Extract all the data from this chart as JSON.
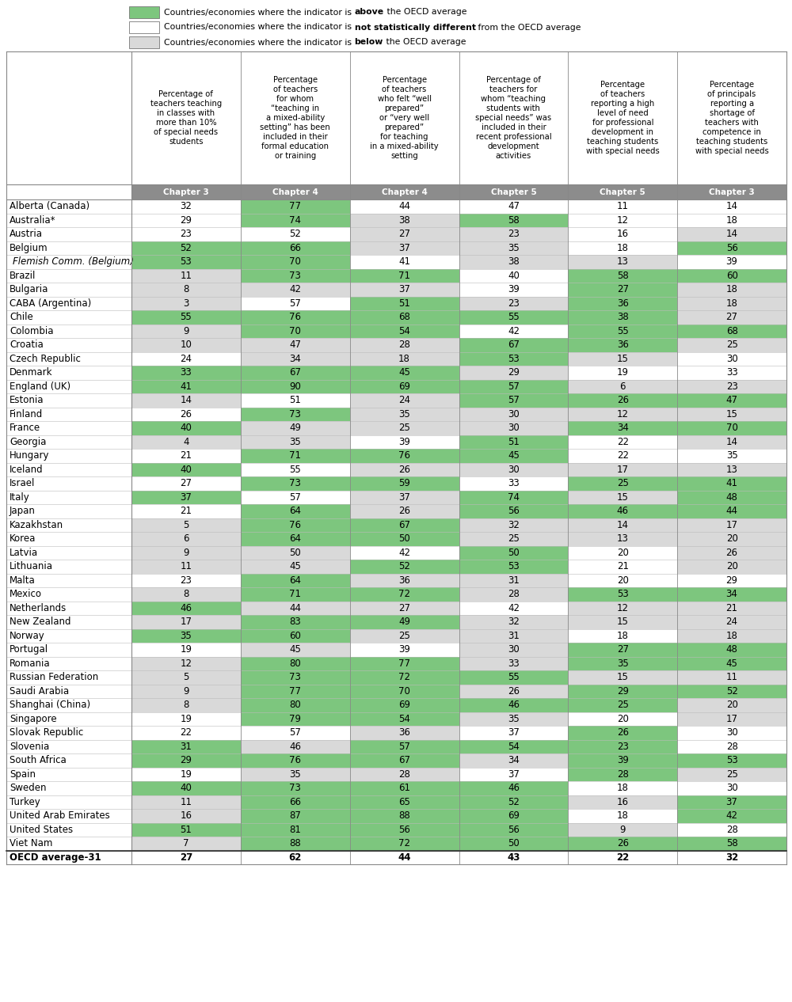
{
  "col_headers": [
    "Percentage of\nteachers teaching\nin classes with\nmore than 10%\nof special needs\nstudents",
    "Percentage\nof teachers\nfor whom\n“teaching in\na mixed-ability\nsetting” has been\nincluded in their\nformal education\nor training",
    "Percentage\nof teachers\nwho felt “well\nprepared”\nor “very well\nprepared”\nfor teaching\nin a mixed-ability\nsetting",
    "Percentage of\nteachers for\nwhom “teaching\nstudents with\nspecial needs” was\nincluded in their\nrecent professional\ndevelopment\nactivities",
    "Percentage\nof teachers\nreporting a high\nlevel of need\nfor professional\ndevelopment in\nteaching students\nwith special needs",
    "Percentage\nof principals\nreporting a\nshortage of\nteachers with\ncompetence in\nteaching students\nwith special needs"
  ],
  "chapter_headers": [
    "Chapter 3",
    "Chapter 4",
    "Chapter 4",
    "Chapter 5",
    "Chapter 5",
    "Chapter 3"
  ],
  "rows": [
    {
      "country": "Alberta (Canada)",
      "values": [
        32,
        77,
        44,
        47,
        11,
        14
      ],
      "colors": [
        "#ffffff",
        "#7dc67e",
        "#ffffff",
        "#ffffff",
        "#ffffff",
        "#ffffff"
      ],
      "italic": false
    },
    {
      "country": "Australia*",
      "values": [
        29,
        74,
        38,
        58,
        12,
        18
      ],
      "colors": [
        "#ffffff",
        "#7dc67e",
        "#d9d9d9",
        "#7dc67e",
        "#ffffff",
        "#ffffff"
      ],
      "italic": false
    },
    {
      "country": "Austria",
      "values": [
        23,
        52,
        27,
        23,
        16,
        14
      ],
      "colors": [
        "#ffffff",
        "#ffffff",
        "#d9d9d9",
        "#d9d9d9",
        "#ffffff",
        "#d9d9d9"
      ],
      "italic": false
    },
    {
      "country": "Belgium",
      "values": [
        52,
        66,
        37,
        35,
        18,
        56
      ],
      "colors": [
        "#7dc67e",
        "#7dc67e",
        "#d9d9d9",
        "#d9d9d9",
        "#ffffff",
        "#7dc67e"
      ],
      "italic": false
    },
    {
      "country": "Flemish Comm. (Belgium)",
      "values": [
        53,
        70,
        41,
        38,
        13,
        39
      ],
      "colors": [
        "#7dc67e",
        "#7dc67e",
        "#ffffff",
        "#d9d9d9",
        "#d9d9d9",
        "#ffffff"
      ],
      "italic": true
    },
    {
      "country": "Brazil",
      "values": [
        11,
        73,
        71,
        40,
        58,
        60
      ],
      "colors": [
        "#d9d9d9",
        "#7dc67e",
        "#7dc67e",
        "#ffffff",
        "#7dc67e",
        "#7dc67e"
      ],
      "italic": false
    },
    {
      "country": "Bulgaria",
      "values": [
        8,
        42,
        37,
        39,
        27,
        18
      ],
      "colors": [
        "#d9d9d9",
        "#d9d9d9",
        "#d9d9d9",
        "#ffffff",
        "#7dc67e",
        "#d9d9d9"
      ],
      "italic": false
    },
    {
      "country": "CABA (Argentina)",
      "values": [
        3,
        57,
        51,
        23,
        36,
        18
      ],
      "colors": [
        "#d9d9d9",
        "#ffffff",
        "#7dc67e",
        "#d9d9d9",
        "#7dc67e",
        "#d9d9d9"
      ],
      "italic": false
    },
    {
      "country": "Chile",
      "values": [
        55,
        76,
        68,
        55,
        38,
        27
      ],
      "colors": [
        "#7dc67e",
        "#7dc67e",
        "#7dc67e",
        "#7dc67e",
        "#7dc67e",
        "#d9d9d9"
      ],
      "italic": false
    },
    {
      "country": "Colombia",
      "values": [
        9,
        70,
        54,
        42,
        55,
        68
      ],
      "colors": [
        "#d9d9d9",
        "#7dc67e",
        "#7dc67e",
        "#ffffff",
        "#7dc67e",
        "#7dc67e"
      ],
      "italic": false
    },
    {
      "country": "Croatia",
      "values": [
        10,
        47,
        28,
        67,
        36,
        25
      ],
      "colors": [
        "#d9d9d9",
        "#d9d9d9",
        "#d9d9d9",
        "#7dc67e",
        "#7dc67e",
        "#d9d9d9"
      ],
      "italic": false
    },
    {
      "country": "Czech Republic",
      "values": [
        24,
        34,
        18,
        53,
        15,
        30
      ],
      "colors": [
        "#ffffff",
        "#d9d9d9",
        "#d9d9d9",
        "#7dc67e",
        "#d9d9d9",
        "#ffffff"
      ],
      "italic": false
    },
    {
      "country": "Denmark",
      "values": [
        33,
        67,
        45,
        29,
        19,
        33
      ],
      "colors": [
        "#7dc67e",
        "#7dc67e",
        "#7dc67e",
        "#d9d9d9",
        "#ffffff",
        "#ffffff"
      ],
      "italic": false
    },
    {
      "country": "England (UK)",
      "values": [
        41,
        90,
        69,
        57,
        6,
        23
      ],
      "colors": [
        "#7dc67e",
        "#7dc67e",
        "#7dc67e",
        "#7dc67e",
        "#d9d9d9",
        "#d9d9d9"
      ],
      "italic": false
    },
    {
      "country": "Estonia",
      "values": [
        14,
        51,
        24,
        57,
        26,
        47
      ],
      "colors": [
        "#d9d9d9",
        "#ffffff",
        "#d9d9d9",
        "#7dc67e",
        "#7dc67e",
        "#7dc67e"
      ],
      "italic": false
    },
    {
      "country": "Finland",
      "values": [
        26,
        73,
        35,
        30,
        12,
        15
      ],
      "colors": [
        "#ffffff",
        "#7dc67e",
        "#d9d9d9",
        "#d9d9d9",
        "#d9d9d9",
        "#d9d9d9"
      ],
      "italic": false
    },
    {
      "country": "France",
      "values": [
        40,
        49,
        25,
        30,
        34,
        70
      ],
      "colors": [
        "#7dc67e",
        "#d9d9d9",
        "#d9d9d9",
        "#d9d9d9",
        "#7dc67e",
        "#7dc67e"
      ],
      "italic": false
    },
    {
      "country": "Georgia",
      "values": [
        4,
        35,
        39,
        51,
        22,
        14
      ],
      "colors": [
        "#d9d9d9",
        "#d9d9d9",
        "#ffffff",
        "#7dc67e",
        "#ffffff",
        "#d9d9d9"
      ],
      "italic": false
    },
    {
      "country": "Hungary",
      "values": [
        21,
        71,
        76,
        45,
        22,
        35
      ],
      "colors": [
        "#ffffff",
        "#7dc67e",
        "#7dc67e",
        "#7dc67e",
        "#ffffff",
        "#ffffff"
      ],
      "italic": false
    },
    {
      "country": "Iceland",
      "values": [
        40,
        55,
        26,
        30,
        17,
        13
      ],
      "colors": [
        "#7dc67e",
        "#ffffff",
        "#d9d9d9",
        "#d9d9d9",
        "#d9d9d9",
        "#d9d9d9"
      ],
      "italic": false
    },
    {
      "country": "Israel",
      "values": [
        27,
        73,
        59,
        33,
        25,
        41
      ],
      "colors": [
        "#ffffff",
        "#7dc67e",
        "#7dc67e",
        "#ffffff",
        "#7dc67e",
        "#7dc67e"
      ],
      "italic": false
    },
    {
      "country": "Italy",
      "values": [
        37,
        57,
        37,
        74,
        15,
        48
      ],
      "colors": [
        "#7dc67e",
        "#ffffff",
        "#d9d9d9",
        "#7dc67e",
        "#d9d9d9",
        "#7dc67e"
      ],
      "italic": false
    },
    {
      "country": "Japan",
      "values": [
        21,
        64,
        26,
        56,
        46,
        44
      ],
      "colors": [
        "#ffffff",
        "#7dc67e",
        "#d9d9d9",
        "#7dc67e",
        "#7dc67e",
        "#7dc67e"
      ],
      "italic": false
    },
    {
      "country": "Kazakhstan",
      "values": [
        5,
        76,
        67,
        32,
        14,
        17
      ],
      "colors": [
        "#d9d9d9",
        "#7dc67e",
        "#7dc67e",
        "#d9d9d9",
        "#d9d9d9",
        "#d9d9d9"
      ],
      "italic": false
    },
    {
      "country": "Korea",
      "values": [
        6,
        64,
        50,
        25,
        13,
        20
      ],
      "colors": [
        "#d9d9d9",
        "#7dc67e",
        "#7dc67e",
        "#d9d9d9",
        "#d9d9d9",
        "#d9d9d9"
      ],
      "italic": false
    },
    {
      "country": "Latvia",
      "values": [
        9,
        50,
        42,
        50,
        20,
        26
      ],
      "colors": [
        "#d9d9d9",
        "#d9d9d9",
        "#ffffff",
        "#7dc67e",
        "#ffffff",
        "#d9d9d9"
      ],
      "italic": false
    },
    {
      "country": "Lithuania",
      "values": [
        11,
        45,
        52,
        53,
        21,
        20
      ],
      "colors": [
        "#d9d9d9",
        "#d9d9d9",
        "#7dc67e",
        "#7dc67e",
        "#ffffff",
        "#d9d9d9"
      ],
      "italic": false
    },
    {
      "country": "Malta",
      "values": [
        23,
        64,
        36,
        31,
        20,
        29
      ],
      "colors": [
        "#ffffff",
        "#7dc67e",
        "#d9d9d9",
        "#d9d9d9",
        "#ffffff",
        "#ffffff"
      ],
      "italic": false
    },
    {
      "country": "Mexico",
      "values": [
        8,
        71,
        72,
        28,
        53,
        34
      ],
      "colors": [
        "#d9d9d9",
        "#7dc67e",
        "#7dc67e",
        "#d9d9d9",
        "#7dc67e",
        "#7dc67e"
      ],
      "italic": false
    },
    {
      "country": "Netherlands",
      "values": [
        46,
        44,
        27,
        42,
        12,
        21
      ],
      "colors": [
        "#7dc67e",
        "#d9d9d9",
        "#d9d9d9",
        "#ffffff",
        "#d9d9d9",
        "#d9d9d9"
      ],
      "italic": false
    },
    {
      "country": "New Zealand",
      "values": [
        17,
        83,
        49,
        32,
        15,
        24
      ],
      "colors": [
        "#d9d9d9",
        "#7dc67e",
        "#7dc67e",
        "#d9d9d9",
        "#d9d9d9",
        "#d9d9d9"
      ],
      "italic": false
    },
    {
      "country": "Norway",
      "values": [
        35,
        60,
        25,
        31,
        18,
        18
      ],
      "colors": [
        "#7dc67e",
        "#7dc67e",
        "#d9d9d9",
        "#d9d9d9",
        "#ffffff",
        "#d9d9d9"
      ],
      "italic": false
    },
    {
      "country": "Portugal",
      "values": [
        19,
        45,
        39,
        30,
        27,
        48
      ],
      "colors": [
        "#ffffff",
        "#d9d9d9",
        "#ffffff",
        "#d9d9d9",
        "#7dc67e",
        "#7dc67e"
      ],
      "italic": false
    },
    {
      "country": "Romania",
      "values": [
        12,
        80,
        77,
        33,
        35,
        45
      ],
      "colors": [
        "#d9d9d9",
        "#7dc67e",
        "#7dc67e",
        "#d9d9d9",
        "#7dc67e",
        "#7dc67e"
      ],
      "italic": false
    },
    {
      "country": "Russian Federation",
      "values": [
        5,
        73,
        72,
        55,
        15,
        11
      ],
      "colors": [
        "#d9d9d9",
        "#7dc67e",
        "#7dc67e",
        "#7dc67e",
        "#d9d9d9",
        "#d9d9d9"
      ],
      "italic": false
    },
    {
      "country": "Saudi Arabia",
      "values": [
        9,
        77,
        70,
        26,
        29,
        52
      ],
      "colors": [
        "#d9d9d9",
        "#7dc67e",
        "#7dc67e",
        "#d9d9d9",
        "#7dc67e",
        "#7dc67e"
      ],
      "italic": false
    },
    {
      "country": "Shanghai (China)",
      "values": [
        8,
        80,
        69,
        46,
        25,
        20
      ],
      "colors": [
        "#d9d9d9",
        "#7dc67e",
        "#7dc67e",
        "#7dc67e",
        "#7dc67e",
        "#d9d9d9"
      ],
      "italic": false
    },
    {
      "country": "Singapore",
      "values": [
        19,
        79,
        54,
        35,
        20,
        17
      ],
      "colors": [
        "#ffffff",
        "#7dc67e",
        "#7dc67e",
        "#d9d9d9",
        "#ffffff",
        "#d9d9d9"
      ],
      "italic": false
    },
    {
      "country": "Slovak Republic",
      "values": [
        22,
        57,
        36,
        37,
        26,
        30
      ],
      "colors": [
        "#ffffff",
        "#ffffff",
        "#d9d9d9",
        "#ffffff",
        "#7dc67e",
        "#ffffff"
      ],
      "italic": false
    },
    {
      "country": "Slovenia",
      "values": [
        31,
        46,
        57,
        54,
        23,
        28
      ],
      "colors": [
        "#7dc67e",
        "#d9d9d9",
        "#7dc67e",
        "#7dc67e",
        "#7dc67e",
        "#ffffff"
      ],
      "italic": false
    },
    {
      "country": "South Africa",
      "values": [
        29,
        76,
        67,
        34,
        39,
        53
      ],
      "colors": [
        "#7dc67e",
        "#7dc67e",
        "#7dc67e",
        "#d9d9d9",
        "#7dc67e",
        "#7dc67e"
      ],
      "italic": false
    },
    {
      "country": "Spain",
      "values": [
        19,
        35,
        28,
        37,
        28,
        25
      ],
      "colors": [
        "#ffffff",
        "#d9d9d9",
        "#d9d9d9",
        "#ffffff",
        "#7dc67e",
        "#d9d9d9"
      ],
      "italic": false
    },
    {
      "country": "Sweden",
      "values": [
        40,
        73,
        61,
        46,
        18,
        30
      ],
      "colors": [
        "#7dc67e",
        "#7dc67e",
        "#7dc67e",
        "#7dc67e",
        "#ffffff",
        "#ffffff"
      ],
      "italic": false
    },
    {
      "country": "Turkey",
      "values": [
        11,
        66,
        65,
        52,
        16,
        37
      ],
      "colors": [
        "#d9d9d9",
        "#7dc67e",
        "#7dc67e",
        "#7dc67e",
        "#d9d9d9",
        "#7dc67e"
      ],
      "italic": false
    },
    {
      "country": "United Arab Emirates",
      "values": [
        16,
        87,
        88,
        69,
        18,
        42
      ],
      "colors": [
        "#d9d9d9",
        "#7dc67e",
        "#7dc67e",
        "#7dc67e",
        "#ffffff",
        "#7dc67e"
      ],
      "italic": false
    },
    {
      "country": "United States",
      "values": [
        51,
        81,
        56,
        56,
        9,
        28
      ],
      "colors": [
        "#7dc67e",
        "#7dc67e",
        "#7dc67e",
        "#7dc67e",
        "#d9d9d9",
        "#ffffff"
      ],
      "italic": false
    },
    {
      "country": "Viet Nam",
      "values": [
        7,
        88,
        72,
        50,
        26,
        58
      ],
      "colors": [
        "#d9d9d9",
        "#7dc67e",
        "#7dc67e",
        "#7dc67e",
        "#7dc67e",
        "#7dc67e"
      ],
      "italic": false
    },
    {
      "country": "OECD average-31",
      "values": [
        27,
        62,
        44,
        43,
        22,
        32
      ],
      "colors": [
        "#ffffff",
        "#ffffff",
        "#ffffff",
        "#ffffff",
        "#ffffff",
        "#ffffff"
      ],
      "italic": false,
      "bold": true
    }
  ],
  "chapter_header_color": "#8c8c8c",
  "green_color": "#7dc67e",
  "gray_color": "#d9d9d9",
  "white_color": "#ffffff",
  "legend_items": [
    {
      "color": "#7dc67e",
      "prefix": "Countries/economies where the indicator is ",
      "bold_word": "above",
      "suffix": " the OECD average"
    },
    {
      "color": "#ffffff",
      "prefix": "Countries/economies where the indicator is ",
      "bold_word": "not statistically different",
      "suffix": " from the OECD average"
    },
    {
      "color": "#d9d9d9",
      "prefix": "Countries/economies where the indicator is ",
      "bold_word": "below",
      "suffix": " the OECD average"
    }
  ]
}
